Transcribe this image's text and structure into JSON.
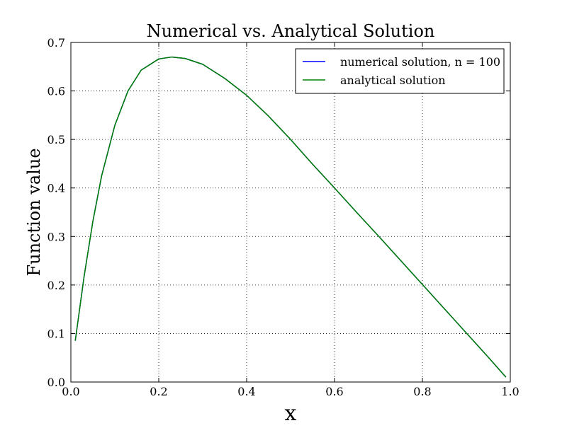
{
  "chart_data": {
    "type": "line",
    "title": "Numerical vs. Analytical Solution",
    "xlabel": "x",
    "ylabel": "Function value",
    "xlim": [
      0.0,
      1.0
    ],
    "ylim": [
      0.0,
      0.7
    ],
    "x_ticks": [
      "0.0",
      "0.2",
      "0.4",
      "0.6",
      "0.8",
      "1.0"
    ],
    "y_ticks": [
      "0.0",
      "0.1",
      "0.2",
      "0.3",
      "0.4",
      "0.5",
      "0.6",
      "0.7"
    ],
    "grid": true,
    "legend_position": "top-right",
    "x": [
      0.01,
      0.02,
      0.03,
      0.05,
      0.07,
      0.1,
      0.13,
      0.16,
      0.2,
      0.23,
      0.26,
      0.3,
      0.35,
      0.4,
      0.45,
      0.5,
      0.55,
      0.6,
      0.65,
      0.7,
      0.75,
      0.8,
      0.85,
      0.9,
      0.95,
      0.99
    ],
    "series": [
      {
        "name": "numerical solution, n = 100",
        "color": "#0000ff",
        "values": [
          0.085,
          0.151,
          0.217,
          0.331,
          0.425,
          0.529,
          0.6,
          0.643,
          0.666,
          0.67,
          0.667,
          0.655,
          0.626,
          0.591,
          0.548,
          0.5,
          0.449,
          0.4,
          0.35,
          0.301,
          0.251,
          0.201,
          0.151,
          0.101,
          0.051,
          0.01
        ]
      },
      {
        "name": "analytical solution",
        "color": "#008000",
        "values": [
          0.085,
          0.151,
          0.217,
          0.331,
          0.425,
          0.529,
          0.6,
          0.643,
          0.666,
          0.67,
          0.667,
          0.655,
          0.626,
          0.591,
          0.548,
          0.5,
          0.449,
          0.4,
          0.35,
          0.301,
          0.251,
          0.201,
          0.151,
          0.101,
          0.051,
          0.01
        ]
      }
    ]
  }
}
